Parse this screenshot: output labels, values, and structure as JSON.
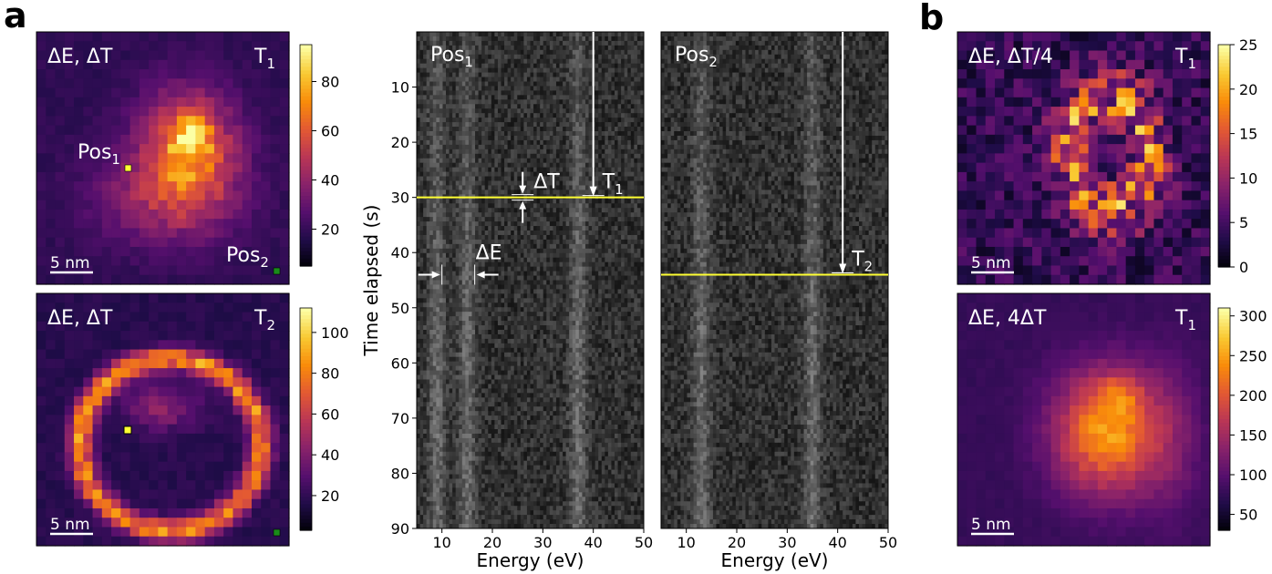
{
  "figure": {
    "panel_letters": [
      "a",
      "b"
    ]
  },
  "colors": {
    "highlight_line": "#ffff33",
    "arrow": "#ffffff",
    "pos1_marker": "#ffff33",
    "pos2_marker": "#1a8c1a"
  },
  "colormap": "inferno",
  "chart_data": [
    {
      "type": "heatmap",
      "id": "map-a-top",
      "colormap": "inferno",
      "label_left": "ΔE, ΔT",
      "label_right_main": "T",
      "label_right_sub": "1",
      "scalebar": "5 nm",
      "markers": [
        {
          "main": "Pos",
          "sub": "1"
        },
        {
          "main": "Pos",
          "sub": "2"
        }
      ],
      "feature": "blob",
      "clim": [
        5,
        95
      ],
      "colorbar_ticks": [
        20,
        40,
        60,
        80
      ],
      "grid_cells": 27
    },
    {
      "type": "heatmap",
      "id": "map-a-bottom",
      "colormap": "inferno",
      "label_left": "ΔE, ΔT",
      "label_right_main": "T",
      "label_right_sub": "2",
      "scalebar": "5 nm",
      "feature": "ring",
      "clim": [
        3,
        112
      ],
      "colorbar_ticks": [
        20,
        40,
        60,
        80,
        100
      ],
      "grid_cells": 27
    },
    {
      "type": "heatmap",
      "id": "spec-pos1",
      "colormap": "gray",
      "label": {
        "main": "Pos",
        "sub": "1"
      },
      "xlabel": "Energy (eV)",
      "ylabel": "Time elapsed (s)",
      "xlim": [
        5,
        50
      ],
      "ylim": [
        90,
        0
      ],
      "xticks": [
        10,
        20,
        30,
        40,
        50
      ],
      "yticks": [
        10,
        20,
        30,
        40,
        50,
        60,
        70,
        80,
        90
      ],
      "bright_bands_eV": [
        9,
        15,
        37
      ],
      "hline_time_s": 30,
      "arrow_energy_eV": 40,
      "arrow_label": {
        "main": "T",
        "sub": "1"
      },
      "dT_label": "ΔT",
      "dT_energy_eV": 26,
      "dE_label": "ΔE",
      "dE_range_eV": [
        10,
        16.5
      ],
      "dE_time_s": 44
    },
    {
      "type": "heatmap",
      "id": "spec-pos2",
      "colormap": "gray",
      "label": {
        "main": "Pos",
        "sub": "2"
      },
      "xlabel": "Energy (eV)",
      "xlim": [
        5,
        50
      ],
      "ylim": [
        90,
        0
      ],
      "xticks": [
        10,
        20,
        30,
        40,
        50
      ],
      "bright_bands_eV": [
        13,
        35
      ],
      "hline_time_s": 44,
      "arrow_energy_eV": 41,
      "arrow_label": {
        "main": "T",
        "sub": "2"
      }
    },
    {
      "type": "heatmap",
      "id": "map-b-top",
      "colormap": "inferno",
      "label_left": "ΔE, ΔT/4",
      "label_right_main": "T",
      "label_right_sub": "1",
      "scalebar": "5 nm",
      "feature": "noisy-ring",
      "clim": [
        0,
        25
      ],
      "colorbar_ticks": [
        0,
        5,
        10,
        15,
        20,
        25
      ],
      "grid_cells": 27
    },
    {
      "type": "heatmap",
      "id": "map-b-bottom",
      "colormap": "inferno",
      "label_left": "ΔE, 4ΔT",
      "label_right_main": "T",
      "label_right_sub": "1",
      "scalebar": "5 nm",
      "feature": "blob-smooth",
      "clim": [
        30,
        310
      ],
      "colorbar_ticks": [
        50,
        100,
        150,
        200,
        250,
        300
      ],
      "grid_cells": 27
    }
  ]
}
